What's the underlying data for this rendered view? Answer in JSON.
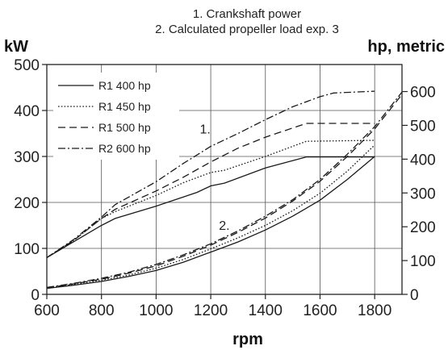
{
  "chart_data": {
    "type": "line",
    "title_lines": [
      "1. Crankshaft power",
      "2. Calculated propeller load exp. 3"
    ],
    "xlabel": "rpm",
    "ylabel_left": "kW",
    "ylabel_right": "hp, metric",
    "xlim": [
      600,
      1900
    ],
    "ylim_left": [
      0,
      500
    ],
    "ylim_right": [
      0,
      680
    ],
    "x_ticks": [
      600,
      800,
      1000,
      1200,
      1400,
      1600,
      1800
    ],
    "y_ticks_left": [
      0,
      100,
      200,
      300,
      400,
      500
    ],
    "y_ticks_right": [
      0,
      100,
      200,
      300,
      400,
      500,
      600
    ],
    "grid": true,
    "legend_position": "top-left",
    "annotations": [
      {
        "text": "1.",
        "x": 1160,
        "y": 350
      },
      {
        "text": "2.",
        "x": 1230,
        "y": 140
      }
    ],
    "series": [
      {
        "name": "R1 400 hp",
        "style": "solid",
        "group": "crankshaft",
        "x": [
          600,
          700,
          800,
          850,
          1000,
          1100,
          1150,
          1200,
          1250,
          1400,
          1550,
          1800
        ],
        "y": [
          80,
          115,
          150,
          165,
          192,
          212,
          222,
          236,
          242,
          275,
          299,
          299
        ]
      },
      {
        "name": "R1 450 hp",
        "style": "dotted",
        "group": "crankshaft",
        "x": [
          600,
          700,
          800,
          850,
          1000,
          1100,
          1200,
          1250,
          1400,
          1550,
          1800
        ],
        "y": [
          80,
          118,
          165,
          180,
          215,
          243,
          265,
          270,
          300,
          333,
          335
        ]
      },
      {
        "name": "R1 500 hp",
        "style": "dashed",
        "group": "crankshaft",
        "x": [
          600,
          700,
          800,
          850,
          1000,
          1100,
          1200,
          1300,
          1400,
          1550,
          1800
        ],
        "y": [
          80,
          118,
          165,
          185,
          225,
          255,
          288,
          318,
          342,
          372,
          372
        ]
      },
      {
        "name": "R2 600 hp",
        "style": "dashdot",
        "group": "crankshaft",
        "x": [
          600,
          700,
          800,
          850,
          1000,
          1100,
          1200,
          1300,
          1400,
          1500,
          1600,
          1650,
          1800
        ],
        "y": [
          80,
          120,
          168,
          195,
          245,
          285,
          322,
          350,
          380,
          408,
          430,
          438,
          442
        ]
      },
      {
        "name": "R1 400 hp propeller",
        "style": "solid",
        "group": "propeller",
        "x": [
          600,
          700,
          800,
          900,
          1000,
          1100,
          1200,
          1300,
          1400,
          1500,
          1600,
          1700,
          1800
        ],
        "y": [
          13,
          20,
          28,
          39,
          52,
          70,
          92,
          114,
          140,
          170,
          205,
          250,
          300
        ]
      },
      {
        "name": "R1 450 hp propeller",
        "style": "dotted",
        "group": "propeller",
        "x": [
          600,
          700,
          800,
          900,
          1000,
          1100,
          1200,
          1300,
          1400,
          1500,
          1600,
          1700,
          1800
        ],
        "y": [
          14,
          22,
          31,
          42,
          57,
          76,
          99,
          123,
          150,
          182,
          220,
          268,
          325
        ]
      },
      {
        "name": "R1 500 hp propeller",
        "style": "dashed",
        "group": "propeller",
        "x": [
          600,
          700,
          800,
          900,
          1000,
          1100,
          1200,
          1300,
          1400,
          1500,
          1600,
          1700,
          1800,
          1900
        ],
        "y": [
          14,
          23,
          33,
          46,
          62,
          83,
          107,
          135,
          166,
          203,
          246,
          300,
          360,
          435
        ]
      },
      {
        "name": "R2 600 hp propeller",
        "style": "dashdot",
        "group": "propeller",
        "x": [
          600,
          700,
          800,
          900,
          1000,
          1100,
          1200,
          1300,
          1400,
          1500,
          1600,
          1700,
          1800,
          1900
        ],
        "y": [
          15,
          24,
          35,
          48,
          65,
          86,
          110,
          138,
          170,
          206,
          250,
          305,
          365,
          440
        ]
      }
    ]
  }
}
